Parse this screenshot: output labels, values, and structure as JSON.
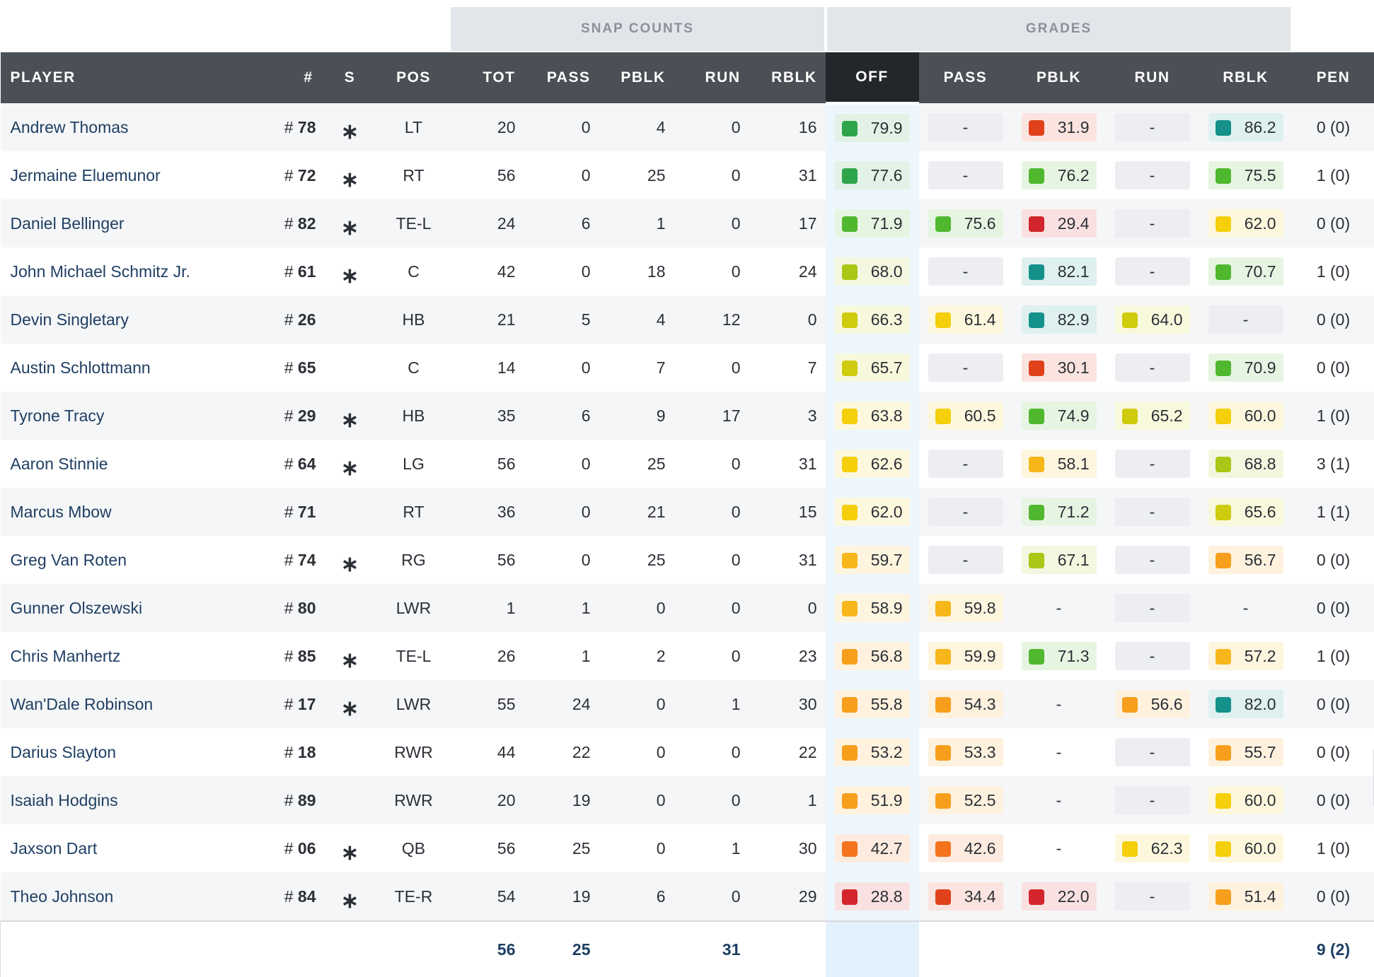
{
  "group_headers": {
    "snap": "SNAP COUNTS",
    "grades": "GRADES"
  },
  "columns": {
    "player": "PLAYER",
    "num": "#",
    "starter": "S",
    "pos": "POS",
    "tot": "TOT",
    "pass": "PASS",
    "pblk": "PBLK",
    "run": "RUN",
    "rblk": "RBLK",
    "off": "OFF",
    "g_pass": "PASS",
    "g_pblk": "PBLK",
    "g_run": "RUN",
    "g_rblk": "RBLK",
    "pen": "PEN"
  },
  "starter_symbol": "∗",
  "number_prefix": "# ",
  "empty_grade": "-",
  "grade_colors": {
    "dark_red": "#d2262c",
    "red": "#e0411b",
    "orange": "#f4731c",
    "amber": "#f79f1c",
    "yellow_orange": "#f7b619",
    "yellow": "#f4cf0a",
    "lime_yellow": "#cfcb0e",
    "lime": "#a9c717",
    "green": "#4fb82f",
    "green_dark": "#2ea54a",
    "teal": "#14918a"
  },
  "players": [
    {
      "name": "Andrew Thomas",
      "num": "78",
      "starter": true,
      "pos": "LT",
      "tot": "20",
      "pass": "0",
      "pblk": "4",
      "run": "0",
      "rblk": "16",
      "off": "79.9",
      "g_pass": "-",
      "g_pblk": "31.9",
      "g_run": "-",
      "g_rblk": "86.2",
      "pen": "0 (0)"
    },
    {
      "name": "Jermaine Eluemunor",
      "num": "72",
      "starter": true,
      "pos": "RT",
      "tot": "56",
      "pass": "0",
      "pblk": "25",
      "run": "0",
      "rblk": "31",
      "off": "77.6",
      "g_pass": "-",
      "g_pblk": "76.2",
      "g_run": "-",
      "g_rblk": "75.5",
      "pen": "1 (0)"
    },
    {
      "name": "Daniel Bellinger",
      "num": "82",
      "starter": true,
      "pos": "TE-L",
      "tot": "24",
      "pass": "6",
      "pblk": "1",
      "run": "0",
      "rblk": "17",
      "off": "71.9",
      "g_pass": "75.6",
      "g_pblk": "29.4",
      "g_run": "-",
      "g_rblk": "62.0",
      "pen": "0 (0)"
    },
    {
      "name": "John Michael Schmitz Jr.",
      "num": "61",
      "starter": true,
      "pos": "C",
      "tot": "42",
      "pass": "0",
      "pblk": "18",
      "run": "0",
      "rblk": "24",
      "off": "68.0",
      "g_pass": "-",
      "g_pblk": "82.1",
      "g_run": "-",
      "g_rblk": "70.7",
      "pen": "1 (0)"
    },
    {
      "name": "Devin Singletary",
      "num": "26",
      "starter": false,
      "pos": "HB",
      "tot": "21",
      "pass": "5",
      "pblk": "4",
      "run": "12",
      "rblk": "0",
      "off": "66.3",
      "g_pass": "61.4",
      "g_pblk": "82.9",
      "g_run": "64.0",
      "g_rblk": "-",
      "pen": "0 (0)"
    },
    {
      "name": "Austin Schlottmann",
      "num": "65",
      "starter": false,
      "pos": "C",
      "tot": "14",
      "pass": "0",
      "pblk": "7",
      "run": "0",
      "rblk": "7",
      "off": "65.7",
      "g_pass": "-",
      "g_pblk": "30.1",
      "g_run": "-",
      "g_rblk": "70.9",
      "pen": "0 (0)"
    },
    {
      "name": "Tyrone Tracy",
      "num": "29",
      "starter": true,
      "pos": "HB",
      "tot": "35",
      "pass": "6",
      "pblk": "9",
      "run": "17",
      "rblk": "3",
      "off": "63.8",
      "g_pass": "60.5",
      "g_pblk": "74.9",
      "g_run": "65.2",
      "g_rblk": "60.0",
      "pen": "1 (0)"
    },
    {
      "name": "Aaron Stinnie",
      "num": "64",
      "starter": true,
      "pos": "LG",
      "tot": "56",
      "pass": "0",
      "pblk": "25",
      "run": "0",
      "rblk": "31",
      "off": "62.6",
      "g_pass": "-",
      "g_pblk": "58.1",
      "g_run": "-",
      "g_rblk": "68.8",
      "pen": "3 (1)"
    },
    {
      "name": "Marcus Mbow",
      "num": "71",
      "starter": false,
      "pos": "RT",
      "tot": "36",
      "pass": "0",
      "pblk": "21",
      "run": "0",
      "rblk": "15",
      "off": "62.0",
      "g_pass": "-",
      "g_pblk": "71.2",
      "g_run": "-",
      "g_rblk": "65.6",
      "pen": "1 (1)"
    },
    {
      "name": "Greg Van Roten",
      "num": "74",
      "starter": true,
      "pos": "RG",
      "tot": "56",
      "pass": "0",
      "pblk": "25",
      "run": "0",
      "rblk": "31",
      "off": "59.7",
      "g_pass": "-",
      "g_pblk": "67.1",
      "g_run": "-",
      "g_rblk": "56.7",
      "pen": "0 (0)"
    },
    {
      "name": "Gunner Olszewski",
      "num": "80",
      "starter": false,
      "pos": "LWR",
      "tot": "1",
      "pass": "1",
      "pblk": "0",
      "run": "0",
      "rblk": "0",
      "off": "58.9",
      "g_pass": "59.8",
      "g_pblk": "-",
      "g_run": "-",
      "g_rblk": "-",
      "pen": "0 (0)"
    },
    {
      "name": "Chris Manhertz",
      "num": "85",
      "starter": true,
      "pos": "TE-L",
      "tot": "26",
      "pass": "1",
      "pblk": "2",
      "run": "0",
      "rblk": "23",
      "off": "56.8",
      "g_pass": "59.9",
      "g_pblk": "71.3",
      "g_run": "-",
      "g_rblk": "57.2",
      "pen": "1 (0)"
    },
    {
      "name": "Wan'Dale Robinson",
      "num": "17",
      "starter": true,
      "pos": "LWR",
      "tot": "55",
      "pass": "24",
      "pblk": "0",
      "run": "1",
      "rblk": "30",
      "off": "55.8",
      "g_pass": "54.3",
      "g_pblk": "-",
      "g_run": "56.6",
      "g_rblk": "82.0",
      "pen": "0 (0)"
    },
    {
      "name": "Darius Slayton",
      "num": "18",
      "starter": false,
      "pos": "RWR",
      "tot": "44",
      "pass": "22",
      "pblk": "0",
      "run": "0",
      "rblk": "22",
      "off": "53.2",
      "g_pass": "53.3",
      "g_pblk": "-",
      "g_run": "-",
      "g_rblk": "55.7",
      "pen": "0 (0)"
    },
    {
      "name": "Isaiah Hodgins",
      "num": "89",
      "starter": false,
      "pos": "RWR",
      "tot": "20",
      "pass": "19",
      "pblk": "0",
      "run": "0",
      "rblk": "1",
      "off": "51.9",
      "g_pass": "52.5",
      "g_pblk": "-",
      "g_run": "-",
      "g_rblk": "60.0",
      "pen": "0 (0)"
    },
    {
      "name": "Jaxson Dart",
      "num": "06",
      "starter": true,
      "pos": "QB",
      "tot": "56",
      "pass": "25",
      "pblk": "0",
      "run": "1",
      "rblk": "30",
      "off": "42.7",
      "g_pass": "42.6",
      "g_pblk": "-",
      "g_run": "62.3",
      "g_rblk": "60.0",
      "pen": "1 (0)"
    },
    {
      "name": "Theo Johnson",
      "num": "84",
      "starter": true,
      "pos": "TE-R",
      "tot": "54",
      "pass": "19",
      "pblk": "6",
      "run": "0",
      "rblk": "29",
      "off": "28.8",
      "g_pass": "34.4",
      "g_pblk": "22.0",
      "g_run": "-",
      "g_rblk": "51.4",
      "pen": "0 (0)"
    }
  ],
  "totals": {
    "tot": "56",
    "pass": "25",
    "run": "31",
    "pen": "9 (2)"
  }
}
